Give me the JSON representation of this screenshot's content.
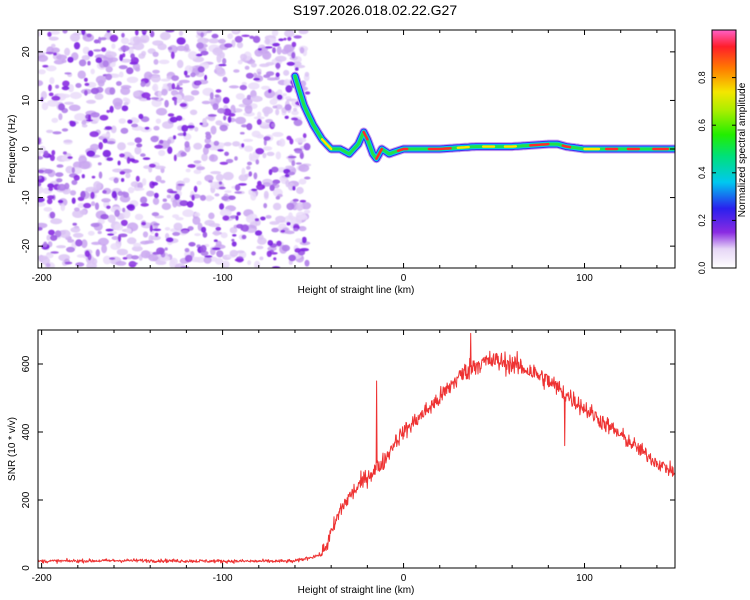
{
  "title": "S197.2026.018.02.22.G27",
  "chart_data": [
    {
      "type": "heatmap",
      "xlabel": "Height of straight line (km)",
      "ylabel": "Frequency (Hz)",
      "xlim": [
        -202,
        150
      ],
      "ylim": [
        -24.5,
        24.5
      ],
      "xticks": [
        -200,
        -100,
        0,
        100
      ],
      "yticks": [
        -20,
        -10,
        0,
        10,
        20
      ],
      "colorbar": {
        "label": "Normalized spectral amplitude",
        "range": [
          0,
          1
        ],
        "ticks": [
          "0.0",
          "0.2",
          "0.4",
          "0.6",
          "0.8"
        ]
      },
      "noise_region_x": [
        -202,
        -53
      ],
      "signal_ridge": {
        "x": [
          -60,
          -55,
          -50,
          -45,
          -40,
          -35,
          -30,
          -25,
          -22,
          -20,
          -17,
          -15,
          -12,
          -8,
          0,
          20,
          40,
          60,
          80,
          85,
          90,
          100,
          120,
          150
        ],
        "y": [
          15,
          9,
          5,
          2,
          0,
          0,
          -1,
          1,
          3.5,
          2,
          -1,
          -2,
          0,
          -1,
          0,
          0,
          0.5,
          0.5,
          1,
          1,
          0.5,
          0,
          0,
          0
        ]
      }
    },
    {
      "type": "line",
      "xlabel": "Height of straight line (km)",
      "ylabel": "SNR (10 * v/v)",
      "xlim": [
        -202,
        150
      ],
      "ylim": [
        0,
        700
      ],
      "xticks": [
        -200,
        -100,
        0,
        100
      ],
      "yticks": [
        0,
        200,
        400,
        600
      ],
      "series": [
        {
          "name": "SNR",
          "color": "#ee3333",
          "x": [
            -202,
            -150,
            -100,
            -60,
            -45,
            -40,
            -35,
            -30,
            -25,
            -20,
            -15,
            -10,
            -5,
            0,
            10,
            20,
            30,
            40,
            50,
            60,
            70,
            80,
            90,
            100,
            110,
            120,
            130,
            140,
            150
          ],
          "values": [
            20,
            22,
            20,
            20,
            40,
            100,
            170,
            210,
            240,
            270,
            290,
            320,
            370,
            400,
            450,
            500,
            560,
            600,
            610,
            600,
            580,
            550,
            510,
            470,
            430,
            390,
            350,
            310,
            280
          ]
        }
      ],
      "spikes": [
        {
          "x": -15,
          "value": 550
        },
        {
          "x": 37,
          "value": 690
        },
        {
          "x": 89,
          "value": 360
        }
      ]
    }
  ]
}
